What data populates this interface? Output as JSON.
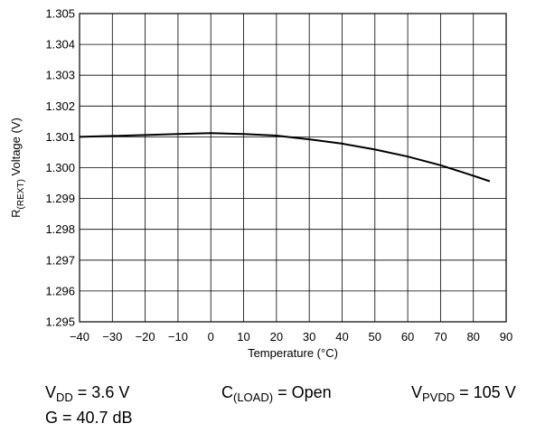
{
  "chart_data": {
    "type": "line",
    "xlabel": "Temperature (°C)",
    "ylabel": {
      "main": "R",
      "sub": "(REXT)",
      "rest": " Voltage (V)"
    },
    "xlim": [
      -40,
      90
    ],
    "ylim": [
      1.295,
      1.305
    ],
    "xticks": [
      -40,
      -30,
      -20,
      -10,
      0,
      10,
      20,
      30,
      40,
      50,
      60,
      70,
      80,
      90
    ],
    "yticks": [
      1.295,
      1.296,
      1.297,
      1.298,
      1.299,
      1.3,
      1.301,
      1.302,
      1.303,
      1.304,
      1.305
    ],
    "grid": true,
    "series": [
      {
        "x": [
          -40,
          -30,
          -20,
          -10,
          0,
          10,
          20,
          25,
          30,
          40,
          50,
          60,
          70,
          80,
          85
        ],
        "y": [
          1.301,
          1.30103,
          1.30106,
          1.30109,
          1.30112,
          1.30109,
          1.30104,
          1.30098,
          1.30092,
          1.30078,
          1.30059,
          1.30036,
          1.30008,
          1.29974,
          1.29956
        ],
        "color": "#000000"
      }
    ]
  },
  "conditions": {
    "vdd": {
      "main": "V",
      "sub": "DD",
      "rest": " = 3.6 V"
    },
    "cload": {
      "main": "C",
      "sub": "(LOAD)",
      "rest": " = Open"
    },
    "vpvdd": {
      "main": "V",
      "sub": "PVDD",
      "rest": " = 105 V"
    },
    "gain": "G = 40.7 dB"
  }
}
